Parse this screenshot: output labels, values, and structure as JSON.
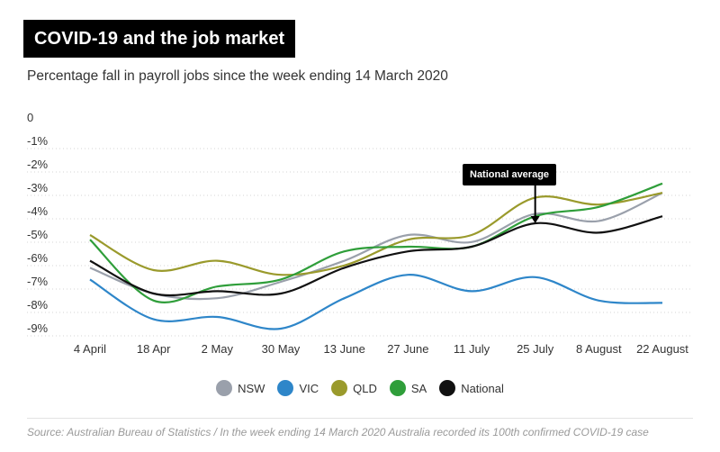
{
  "header": {
    "title": "COVID-19 and the job market",
    "subtitle": "Percentage fall in payroll jobs since the week ending 14 March 2020"
  },
  "chart_data": {
    "type": "line",
    "title": "COVID-19 and the job market",
    "subtitle": "Percentage fall in payroll jobs since the week ending 14 March 2020",
    "xlabel": "",
    "ylabel": "",
    "ylim": [
      -9,
      0
    ],
    "yticks": [
      0,
      -1,
      -2,
      -3,
      -4,
      -5,
      -6,
      -7,
      -8,
      -9
    ],
    "ytick_labels": [
      "0",
      "-1%",
      "-2%",
      "-3%",
      "-4%",
      "-5%",
      "-6%",
      "-7%",
      "-8%",
      "-9%"
    ],
    "categories": [
      "4 April",
      "18 Apr",
      "2 May",
      "30 May",
      "13 June",
      "27 June",
      "11 July",
      "25 July",
      "8 August",
      "22 August"
    ],
    "grid": true,
    "legend_position": "bottom",
    "series": [
      {
        "name": "NSW",
        "color": "#9aa0ab",
        "values": [
          -6.4,
          -7.5,
          -7.7,
          -7.0,
          -6.1,
          -5.0,
          -5.3,
          -4.1,
          -4.4,
          -3.2
        ]
      },
      {
        "name": "VIC",
        "color": "#2e86c9",
        "values": [
          -6.9,
          -8.6,
          -8.5,
          -9.0,
          -7.7,
          -6.7,
          -7.4,
          -6.8,
          -7.8,
          -7.9
        ]
      },
      {
        "name": "QLD",
        "color": "#9a9a2c",
        "values": [
          -5.0,
          -6.5,
          -6.1,
          -6.7,
          -6.3,
          -5.2,
          -5.0,
          -3.4,
          -3.7,
          -3.2
        ]
      },
      {
        "name": "SA",
        "color": "#2f9e3a",
        "values": [
          -5.2,
          -7.8,
          -7.2,
          -6.9,
          -5.7,
          -5.5,
          -5.5,
          -4.2,
          -3.8,
          -2.8
        ]
      },
      {
        "name": "National",
        "color": "#111111",
        "values": [
          -6.1,
          -7.5,
          -7.4,
          -7.5,
          -6.4,
          -5.7,
          -5.5,
          -4.5,
          -4.9,
          -4.2
        ]
      }
    ],
    "annotations": [
      {
        "text": "National average",
        "series": "National",
        "category": "25 July"
      }
    ]
  },
  "source": "Source: Australian Bureau of Statistics / In the week ending 14 March 2020 Australia recorded its 100th confirmed COVID-19 case"
}
